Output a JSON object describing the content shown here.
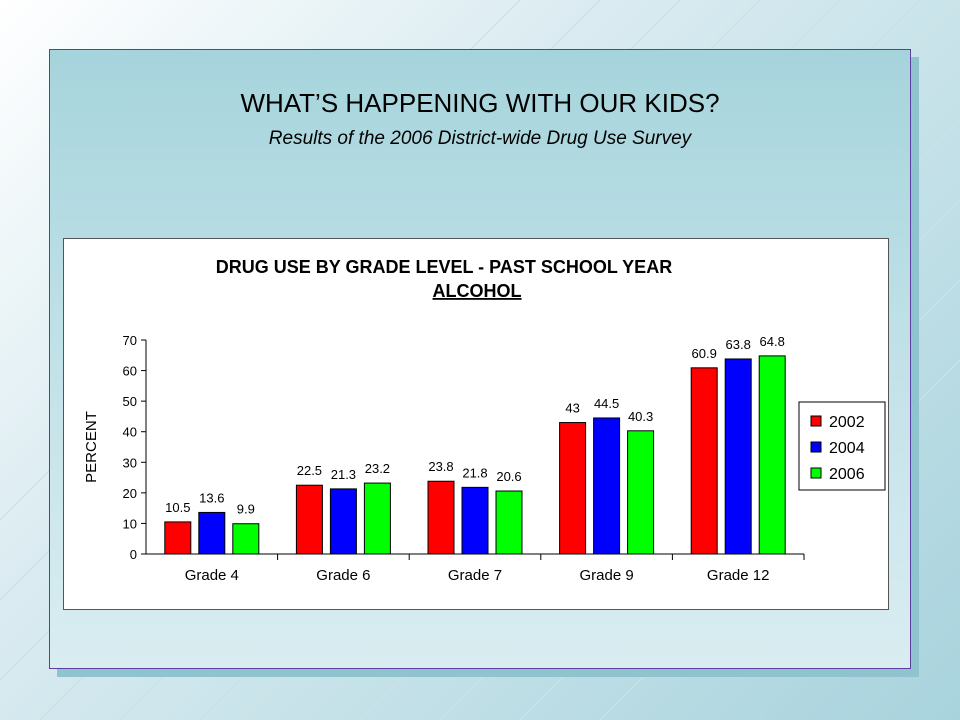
{
  "slide": {
    "title": "WHAT’S HAPPENING WITH OUR KIDS?",
    "subtitle": "Results of the 2006 District-wide Drug Use Survey"
  },
  "chart_data": {
    "type": "bar",
    "title": "DRUG USE BY GRADE LEVEL - PAST SCHOOL YEAR",
    "subtitle": "ALCOHOL",
    "ylabel": "PERCENT",
    "xlabel": "",
    "ylim": [
      0,
      70
    ],
    "yticks": [
      0,
      10,
      20,
      30,
      40,
      50,
      60,
      70
    ],
    "categories": [
      "Grade 4",
      "Grade 6",
      "Grade 7",
      "Grade 9",
      "Grade 12"
    ],
    "series": [
      {
        "name": "2002",
        "color": "#ff0000",
        "values": [
          10.5,
          22.5,
          23.8,
          43,
          60.9
        ]
      },
      {
        "name": "2004",
        "color": "#0000ff",
        "values": [
          13.6,
          21.3,
          21.8,
          44.5,
          63.8
        ]
      },
      {
        "name": "2006",
        "color": "#00ff00",
        "values": [
          9.9,
          23.2,
          20.6,
          40.3,
          64.8
        ]
      }
    ],
    "legend_position": "right",
    "grid": false
  }
}
